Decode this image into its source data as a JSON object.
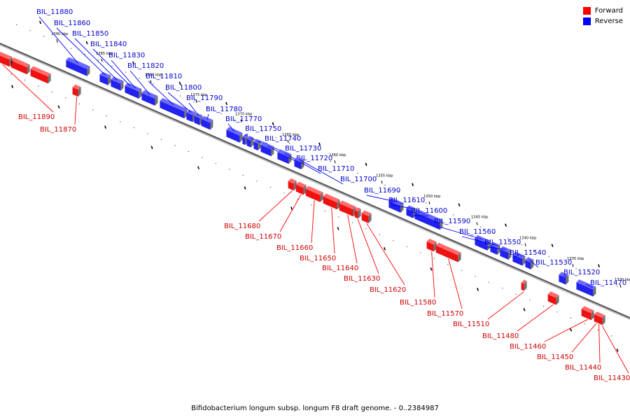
{
  "caption": "Bifidobacterium longum subsp. longum F8 draft genome. - 0..2384987",
  "legend": [
    {
      "label": "Forward",
      "color": "#ff0000"
    },
    {
      "label": "Reverse",
      "color": "#0000ff"
    }
  ],
  "ticks": [
    "1390 kbp",
    "1385 kbp",
    "1380 kbp",
    "1375 kbp",
    "1370 kbp",
    "1365 kbp",
    "1360 kbp",
    "1355 kbp",
    "1350 kbp",
    "1345 kbp",
    "1340 kbp",
    "1335 kbp",
    "1330 kbp"
  ],
  "genes": {
    "reverse": [
      "BIL_11880",
      "BIL_11860",
      "BIL_11850",
      "BIL_11840",
      "BIL_11830",
      "BIL_11820",
      "BIL_11810",
      "BIL_11800",
      "BIL_11790",
      "BIL_11780",
      "BIL_11770",
      "BIL_11750",
      "BIL_11740",
      "BIL_11730",
      "BIL_11720",
      "BIL_11710",
      "BIL_11700",
      "BIL_11690",
      "BIL_11610",
      "BIL_11600",
      "BIL_11590",
      "BIL_11560",
      "BIL_11550",
      "BIL_11540",
      "BIL_11530",
      "BIL_11520",
      "BIL_11470"
    ],
    "forward": [
      "BIL_11890",
      "BIL_11870",
      "BIL_11680",
      "BIL_11670",
      "BIL_11660",
      "BIL_11650",
      "BIL_11640",
      "BIL_11630",
      "BIL_11620",
      "BIL_11580",
      "BIL_11570",
      "BIL_11510",
      "BIL_11480",
      "BIL_11460",
      "BIL_11450",
      "BIL_11440",
      "BIL_11430"
    ]
  }
}
